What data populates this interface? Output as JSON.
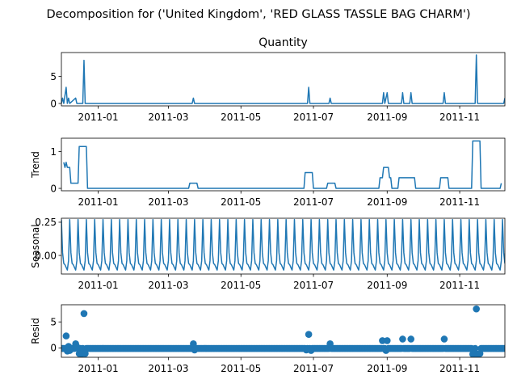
{
  "suptitle": "Decomposition for ('United Kingdom', 'RED GLASS TASSLE BAG CHARM')",
  "colors": {
    "series": "#1f77b4",
    "axes": "#000000",
    "background": "#ffffff"
  },
  "chart_data": [
    {
      "type": "line",
      "title": "Quantity",
      "ylabel": "",
      "x_range": [
        "2010-12-01",
        "2011-12-09"
      ],
      "x_ticks": [
        "2011-01",
        "2011-03",
        "2011-05",
        "2011-07",
        "2011-09",
        "2011-11"
      ],
      "y_ticks": [
        "0",
        "5"
      ],
      "ylim": [
        -0.45,
        9.45
      ],
      "grid": false,
      "series": [
        {
          "values": [
            [
              "2010-12-01",
              0
            ],
            [
              "2010-12-02",
              1
            ],
            [
              "2010-12-03",
              0
            ],
            [
              "2010-12-05",
              3
            ],
            [
              "2010-12-06",
              0
            ],
            [
              "2010-12-07",
              1
            ],
            [
              "2010-12-08",
              0
            ],
            [
              "2010-12-13",
              1
            ],
            [
              "2010-12-14",
              0
            ],
            [
              "2010-12-19",
              0
            ],
            [
              "2010-12-20",
              8
            ],
            [
              "2010-12-21",
              0
            ],
            [
              "2011-03-21",
              0
            ],
            [
              "2011-03-22",
              1
            ],
            [
              "2011-03-23",
              0
            ],
            [
              "2011-06-26",
              0
            ],
            [
              "2011-06-27",
              3
            ],
            [
              "2011-06-28",
              0
            ],
            [
              "2011-07-14",
              0
            ],
            [
              "2011-07-15",
              1
            ],
            [
              "2011-07-16",
              0
            ],
            [
              "2011-08-28",
              0
            ],
            [
              "2011-08-29",
              2
            ],
            [
              "2011-08-30",
              0
            ],
            [
              "2011-09-01",
              2
            ],
            [
              "2011-09-02",
              0
            ],
            [
              "2011-09-13",
              0
            ],
            [
              "2011-09-14",
              2
            ],
            [
              "2011-09-15",
              0
            ],
            [
              "2011-09-20",
              0
            ],
            [
              "2011-09-21",
              2
            ],
            [
              "2011-09-22",
              0
            ],
            [
              "2011-10-18",
              0
            ],
            [
              "2011-10-19",
              2
            ],
            [
              "2011-10-20",
              0
            ],
            [
              "2011-11-14",
              0
            ],
            [
              "2011-11-15",
              9
            ],
            [
              "2011-11-16",
              0
            ],
            [
              "2011-12-08",
              0
            ],
            [
              "2011-12-09",
              1
            ]
          ]
        }
      ]
    },
    {
      "type": "line",
      "title": "",
      "ylabel": "Trend",
      "x_range": [
        "2010-12-01",
        "2011-12-09"
      ],
      "x_ticks": [
        "2011-01",
        "2011-03",
        "2011-05",
        "2011-07",
        "2011-09",
        "2011-11"
      ],
      "y_ticks": [
        "0",
        "1"
      ],
      "ylim": [
        -0.065,
        1.365
      ],
      "grid": false,
      "series": [
        {
          "values": [
            [
              "2010-12-03",
              0.71
            ],
            [
              "2010-12-04",
              0.57
            ],
            [
              "2010-12-05",
              0.71
            ],
            [
              "2010-12-06",
              0.57
            ],
            [
              "2010-12-08",
              0.57
            ],
            [
              "2010-12-09",
              0.14
            ],
            [
              "2010-12-15",
              0.14
            ],
            [
              "2010-12-16",
              1.14
            ],
            [
              "2010-12-22",
              1.14
            ],
            [
              "2010-12-23",
              0
            ],
            [
              "2011-03-18",
              0
            ],
            [
              "2011-03-19",
              0.14
            ],
            [
              "2011-03-25",
              0.14
            ],
            [
              "2011-03-26",
              0
            ],
            [
              "2011-06-23",
              0
            ],
            [
              "2011-06-24",
              0.43
            ],
            [
              "2011-06-30",
              0.43
            ],
            [
              "2011-07-01",
              0
            ],
            [
              "2011-07-12",
              0
            ],
            [
              "2011-07-13",
              0.14
            ],
            [
              "2011-07-19",
              0.14
            ],
            [
              "2011-07-20",
              0
            ],
            [
              "2011-08-25",
              0
            ],
            [
              "2011-08-26",
              0.29
            ],
            [
              "2011-08-28",
              0.29
            ],
            [
              "2011-08-29",
              0.57
            ],
            [
              "2011-09-02",
              0.57
            ],
            [
              "2011-09-03",
              0.29
            ],
            [
              "2011-09-04",
              0.29
            ],
            [
              "2011-09-05",
              0
            ],
            [
              "2011-09-10",
              0
            ],
            [
              "2011-09-11",
              0.29
            ],
            [
              "2011-09-24",
              0.29
            ],
            [
              "2011-09-25",
              0
            ],
            [
              "2011-10-15",
              0
            ],
            [
              "2011-10-16",
              0.29
            ],
            [
              "2011-10-22",
              0.29
            ],
            [
              "2011-10-23",
              0
            ],
            [
              "2011-11-11",
              0
            ],
            [
              "2011-11-12",
              1.29
            ],
            [
              "2011-11-18",
              1.29
            ],
            [
              "2011-11-19",
              0
            ],
            [
              "2011-12-05",
              0
            ],
            [
              "2011-12-06",
              0.14
            ]
          ]
        }
      ]
    },
    {
      "type": "line",
      "title": "",
      "ylabel": "Seasonal",
      "x_range": [
        "2010-12-01",
        "2011-12-09"
      ],
      "x_ticks": [
        "2011-01",
        "2011-03",
        "2011-05",
        "2011-07",
        "2011-09",
        "2011-11"
      ],
      "y_ticks": [
        "0.25",
        "0.00"
      ],
      "ylim": [
        -0.14,
        0.28
      ],
      "grid": false,
      "period_days": 7,
      "pattern": [
        0.27,
        0.02,
        -0.06,
        -0.07,
        -0.09,
        -0.11,
        -0.04
      ],
      "series": [
        {
          "values": []
        }
      ]
    },
    {
      "type": "scatter",
      "title": "",
      "ylabel": "Resid",
      "x_range": [
        "2010-12-01",
        "2011-12-09"
      ],
      "x_ticks": [
        "2011-01",
        "2011-03",
        "2011-05",
        "2011-07",
        "2011-09",
        "2011-11"
      ],
      "y_ticks": [
        "0",
        "5"
      ],
      "ylim": [
        -1.8,
        8.3
      ],
      "grid": false,
      "baseline": -0.1,
      "series": [
        {
          "values": [
            [
              "2010-12-05",
              2.3
            ],
            [
              "2010-12-06",
              -0.6
            ],
            [
              "2010-12-07",
              0.3
            ],
            [
              "2010-12-08",
              -0.5
            ],
            [
              "2010-12-13",
              0.8
            ],
            [
              "2010-12-14",
              0.2
            ],
            [
              "2010-12-16",
              -1.1
            ],
            [
              "2010-12-18",
              -1.2
            ],
            [
              "2010-12-20",
              6.6
            ],
            [
              "2010-12-21",
              -1.1
            ],
            [
              "2011-03-22",
              0.8
            ],
            [
              "2011-03-23",
              -0.4
            ],
            [
              "2011-06-25",
              -0.4
            ],
            [
              "2011-06-27",
              2.6
            ],
            [
              "2011-06-29",
              -0.5
            ],
            [
              "2011-07-15",
              0.8
            ],
            [
              "2011-08-28",
              1.4
            ],
            [
              "2011-08-31",
              -0.5
            ],
            [
              "2011-09-01",
              1.4
            ],
            [
              "2011-09-14",
              1.7
            ],
            [
              "2011-09-21",
              1.7
            ],
            [
              "2011-10-19",
              1.7
            ],
            [
              "2011-11-12",
              -1.2
            ],
            [
              "2011-11-13",
              -1.2
            ],
            [
              "2011-11-15",
              7.5
            ],
            [
              "2011-11-16",
              -1.2
            ],
            [
              "2011-11-17",
              -1.2
            ],
            [
              "2011-11-18",
              -1.1
            ]
          ]
        }
      ]
    }
  ]
}
